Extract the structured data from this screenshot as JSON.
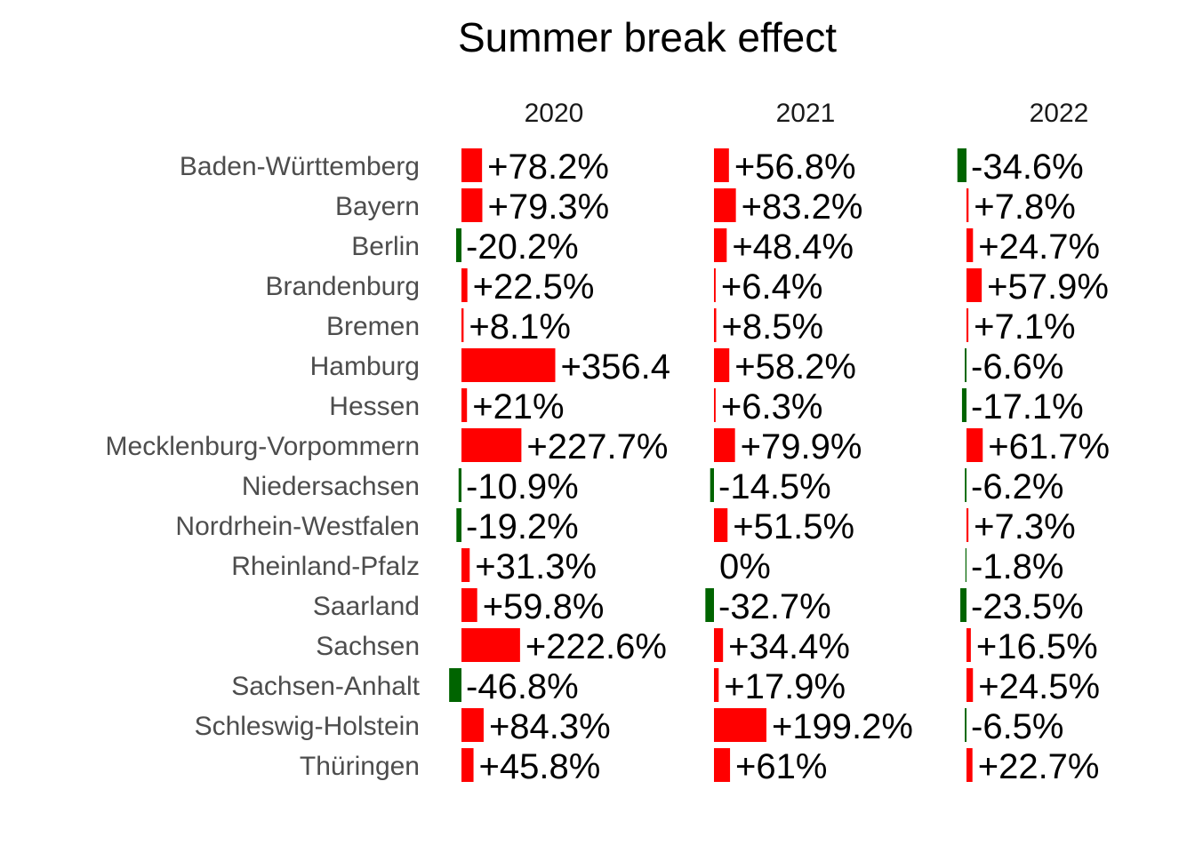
{
  "chart_data": {
    "type": "bar",
    "title": "Summer break effect",
    "categories": [
      "Baden-Württemberg",
      "Bayern",
      "Berlin",
      "Brandenburg",
      "Bremen",
      "Hamburg",
      "Hessen",
      "Mecklenburg-Vorpommern",
      "Niedersachsen",
      "Nordrhein-Westfalen",
      "Rheinland-Pfalz",
      "Saarland",
      "Sachsen",
      "Sachsen-Anhalt",
      "Schleswig-Holstein",
      "Thüringen"
    ],
    "series": [
      {
        "name": "2020",
        "values": [
          78.2,
          79.3,
          -20.2,
          22.5,
          8.1,
          356.4,
          21,
          227.7,
          -10.9,
          -19.2,
          31.3,
          59.8,
          222.6,
          -46.8,
          84.3,
          45.8
        ],
        "labels": [
          "+78.2%",
          "+79.3%",
          "-20.2%",
          "+22.5%",
          "+8.1%",
          "+356.4%",
          "+21%",
          "+227.7%",
          "-10.9%",
          "-19.2%",
          "+31.3%",
          "+59.8%",
          "+222.6%",
          "-46.8%",
          "+84.3%",
          "+45.8%"
        ]
      },
      {
        "name": "2021",
        "values": [
          56.8,
          83.2,
          48.4,
          6.4,
          8.5,
          58.2,
          6.3,
          79.9,
          -14.5,
          51.5,
          0,
          -32.7,
          34.4,
          17.9,
          199.2,
          61
        ],
        "labels": [
          "+56.8%",
          "+83.2%",
          "+48.4%",
          "+6.4%",
          "+8.5%",
          "+58.2%",
          "+6.3%",
          "+79.9%",
          "-14.5%",
          "+51.5%",
          "0%",
          "-32.7%",
          "+34.4%",
          "+17.9%",
          "+199.2%",
          "+61%"
        ]
      },
      {
        "name": "2022",
        "values": [
          -34.6,
          7.8,
          24.7,
          57.9,
          7.1,
          -6.6,
          -17.1,
          61.7,
          -6.2,
          7.3,
          -1.8,
          -23.5,
          16.5,
          24.5,
          -6.5,
          22.7
        ],
        "labels": [
          "-34.6%",
          "+7.8%",
          "+24.7%",
          "+57.9%",
          "+7.1%",
          "-6.6%",
          "-17.1%",
          "+61.7%",
          "-6.2%",
          "+7.3%",
          "-1.8%",
          "-23.5%",
          "+16.5%",
          "+24.5%",
          "-6.5%",
          "+22.7%"
        ]
      }
    ],
    "colors": {
      "positive": "#ff0000",
      "negative": "#006400"
    },
    "grid": false,
    "legend": "none"
  }
}
